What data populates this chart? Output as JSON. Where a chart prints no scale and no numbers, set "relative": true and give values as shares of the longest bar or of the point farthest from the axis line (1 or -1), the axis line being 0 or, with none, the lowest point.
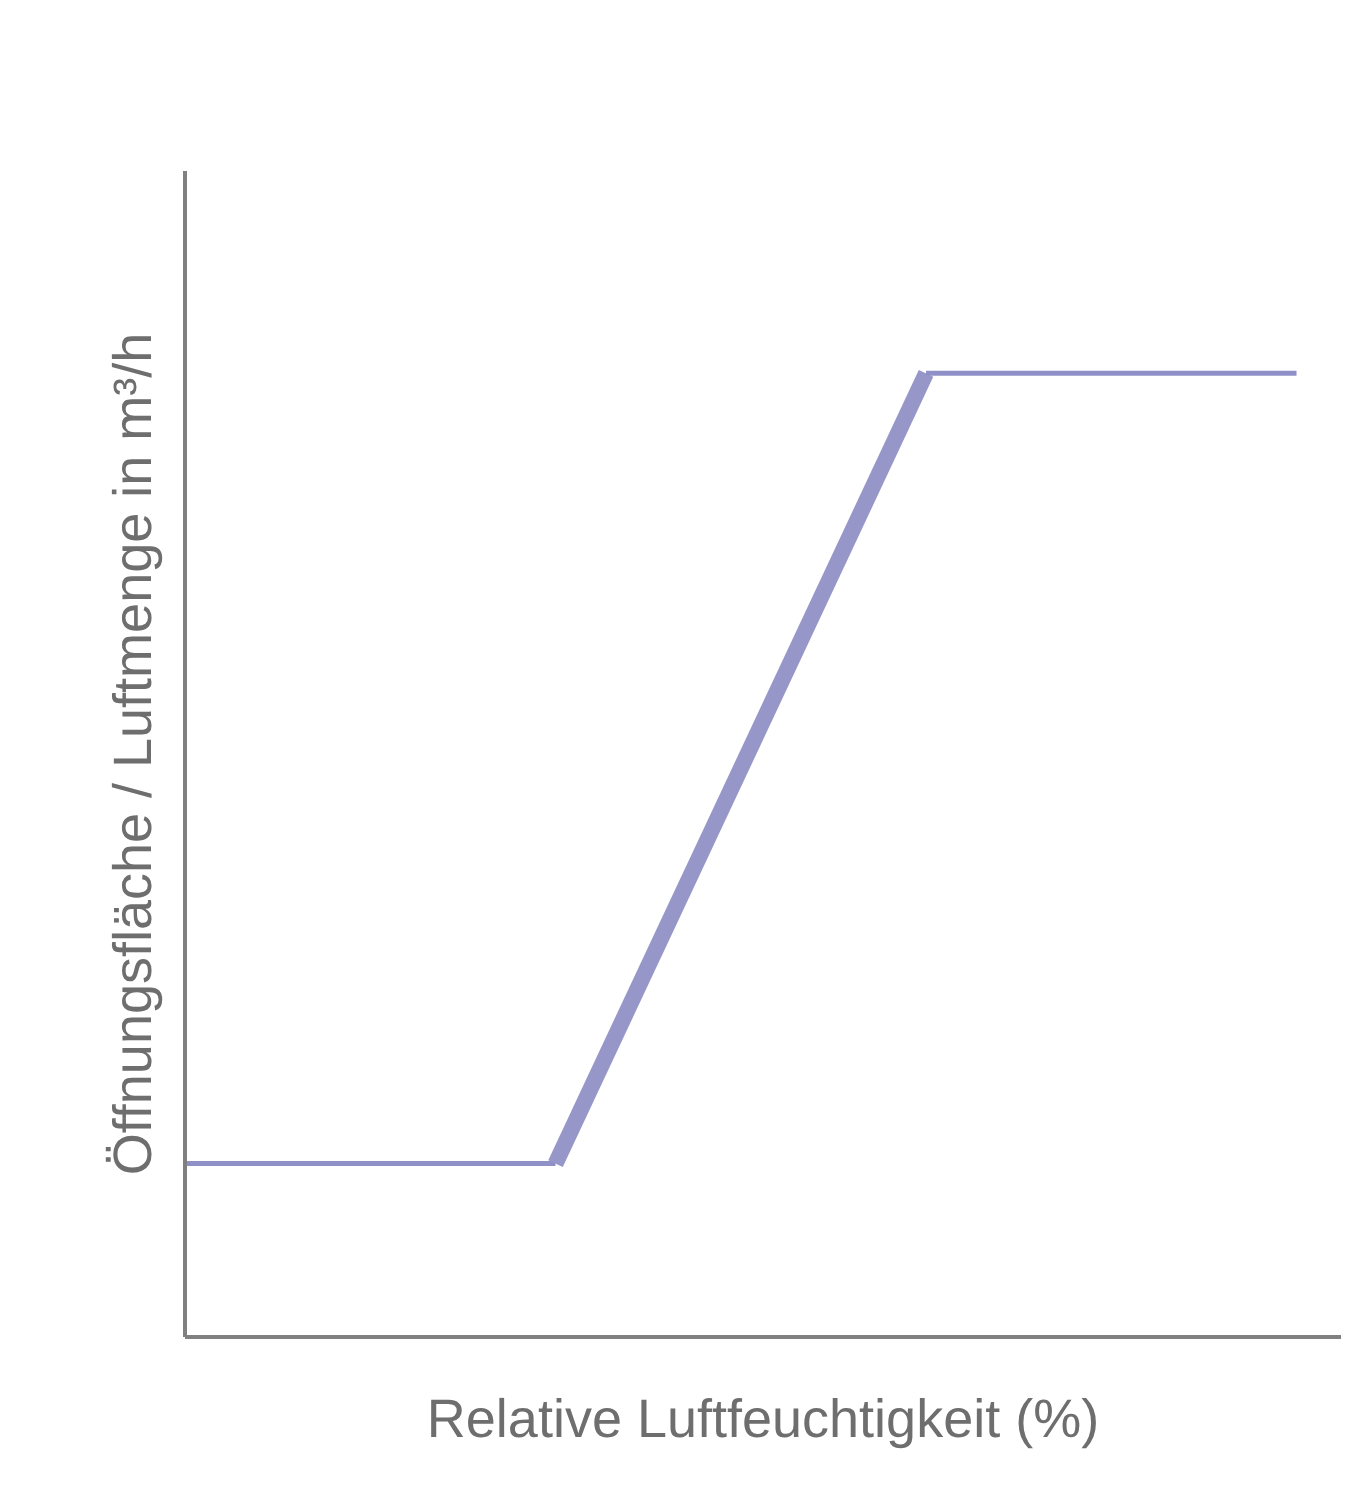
{
  "chart_data": {
    "type": "line",
    "relative": true,
    "xlabel": "Relative Luftfeuchtigkeit (%)",
    "ylabel": "Öffnungsfläche / Luftmenge in m³/h",
    "categories": [
      null,
      null,
      null,
      null
    ],
    "grid": false,
    "marker": "none",
    "line_style": "solid",
    "series": [
      {
        "color": "#9090c8",
        "values": [
          0.18,
          0.18,
          null,
          null
        ]
      },
      {
        "color": "#9696c8",
        "values": [
          null,
          0.18,
          1,
          null
        ]
      },
      {
        "color": "#9090c8",
        "values": [
          null,
          null,
          1,
          1
        ]
      }
    ]
  }
}
